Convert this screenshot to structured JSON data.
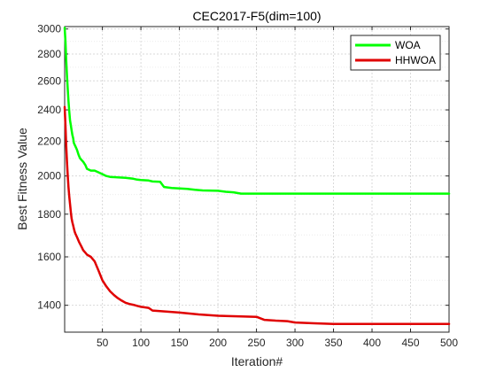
{
  "chart_data": {
    "type": "line",
    "title": "CEC2017-F5(dim=100)",
    "xlabel": "Iteration#",
    "ylabel": "Best Fitness Value",
    "xlim": [
      1,
      500
    ],
    "ylim": [
      1300,
      3020
    ],
    "yscale": "log",
    "grid": true,
    "legend_position": "top-right",
    "x_ticks": [
      50,
      100,
      150,
      200,
      250,
      300,
      350,
      400,
      450,
      500
    ],
    "y_ticks": [
      1400,
      1600,
      1800,
      2000,
      2200,
      2400,
      2600,
      2800,
      3000
    ],
    "series": [
      {
        "name": "WOA",
        "color": "#00ff00",
        "x": [
          1,
          2,
          3,
          4,
          5,
          6,
          7,
          8,
          9,
          10,
          11,
          12,
          13,
          15,
          17,
          19,
          21,
          23,
          25,
          28,
          30,
          35,
          40,
          45,
          50,
          55,
          60,
          70,
          80,
          90,
          95,
          100,
          110,
          115,
          125,
          130,
          140,
          150,
          160,
          170,
          180,
          200,
          210,
          220,
          230,
          250,
          300,
          350,
          400,
          450,
          500
        ],
        "y": [
          3010,
          2900,
          2760,
          2640,
          2540,
          2460,
          2390,
          2330,
          2300,
          2270,
          2240,
          2220,
          2190,
          2170,
          2150,
          2120,
          2100,
          2090,
          2080,
          2060,
          2040,
          2030,
          2030,
          2020,
          2010,
          2000,
          1995,
          1992,
          1990,
          1985,
          1980,
          1978,
          1975,
          1970,
          1968,
          1940,
          1935,
          1932,
          1930,
          1925,
          1922,
          1920,
          1915,
          1912,
          1905,
          1905,
          1905,
          1905,
          1905,
          1905,
          1905
        ]
      },
      {
        "name": "HHWOA",
        "color": "#e00000",
        "x": [
          1,
          2,
          3,
          4,
          5,
          6,
          7,
          8,
          9,
          10,
          11,
          12,
          13,
          14,
          15,
          17,
          20,
          23,
          25,
          28,
          30,
          35,
          40,
          45,
          50,
          55,
          60,
          65,
          70,
          75,
          80,
          85,
          90,
          95,
          100,
          110,
          115,
          125,
          150,
          175,
          200,
          225,
          250,
          260,
          275,
          290,
          300,
          325,
          350,
          400,
          450,
          500
        ],
        "y": [
          2420,
          2300,
          2180,
          2080,
          2000,
          1940,
          1890,
          1850,
          1810,
          1780,
          1760,
          1745,
          1730,
          1715,
          1705,
          1690,
          1665,
          1645,
          1630,
          1618,
          1610,
          1600,
          1580,
          1540,
          1500,
          1475,
          1455,
          1440,
          1428,
          1418,
          1410,
          1405,
          1402,
          1398,
          1394,
          1390,
          1380,
          1378,
          1372,
          1365,
          1360,
          1358,
          1356,
          1345,
          1342,
          1340,
          1335,
          1332,
          1330,
          1330,
          1330,
          1330
        ]
      }
    ]
  }
}
